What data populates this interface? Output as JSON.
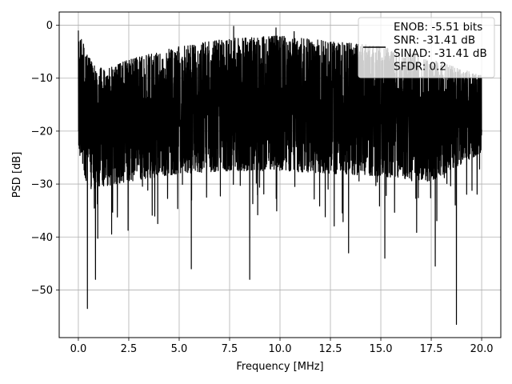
{
  "chart_data": {
    "type": "line",
    "title": "",
    "xlabel": "Frequency [MHz]",
    "ylabel": "PSD [dB]",
    "xlim": [
      -0.95,
      20.95
    ],
    "ylim": [
      -59,
      2.5
    ],
    "xticks": [
      0.0,
      2.5,
      5.0,
      7.5,
      10.0,
      12.5,
      15.0,
      17.5,
      20.0
    ],
    "xtick_labels": [
      "0.0",
      "2.5",
      "5.0",
      "7.5",
      "10.0",
      "12.5",
      "15.0",
      "17.5",
      "20.0"
    ],
    "yticks": [
      0,
      -10,
      -20,
      -30,
      -40,
      -50
    ],
    "ytick_labels": [
      "0",
      "−10",
      "−20",
      "−30",
      "−40",
      "−50"
    ],
    "grid": true,
    "legend_position": "upper-right",
    "series": [
      {
        "name": "ENOB: -5.51 bits\nSNR: -31.41 dB\nSINAD: -31.41 dB\nSFDR: 0.2",
        "color": "#000000",
        "x_range": [
          0.0,
          20.0
        ],
        "points": 4096,
        "envelope_top": [
          [
            0.0,
            -1.0
          ],
          [
            0.5,
            -6.0
          ],
          [
            1.25,
            -8.5
          ],
          [
            2.5,
            -6.5
          ],
          [
            5.0,
            -4.0
          ],
          [
            7.5,
            -2.5
          ],
          [
            10.0,
            -2.0
          ],
          [
            12.5,
            -3.0
          ],
          [
            15.0,
            -4.0
          ],
          [
            17.5,
            -6.5
          ],
          [
            20.0,
            -9.5
          ]
        ],
        "envelope_bottom": [
          [
            0.0,
            -24.0
          ],
          [
            0.5,
            -31.0
          ],
          [
            2.5,
            -29.5
          ],
          [
            5.0,
            -28.0
          ],
          [
            7.5,
            -27.5
          ],
          [
            10.0,
            -27.5
          ],
          [
            12.5,
            -28.0
          ],
          [
            15.0,
            -28.5
          ],
          [
            17.5,
            -29.5
          ],
          [
            20.0,
            -24.0
          ]
        ],
        "notable_minima": [
          [
            0.45,
            -53.5
          ],
          [
            0.85,
            -48.0
          ],
          [
            5.6,
            -46.0
          ],
          [
            8.5,
            -48.0
          ],
          [
            13.4,
            -43.0
          ],
          [
            15.2,
            -44.0
          ],
          [
            17.7,
            -45.5
          ],
          [
            18.75,
            -56.5
          ]
        ],
        "notable_maxima": [
          [
            0.0,
            -1.0
          ],
          [
            7.7,
            -0.2
          ],
          [
            9.8,
            -0.5
          ],
          [
            10.7,
            -1.2
          ]
        ]
      }
    ],
    "legend": {
      "lines": [
        "ENOB: -5.51 bits",
        "SNR: -31.41 dB",
        "SINAD: -31.41 dB",
        "SFDR: 0.2"
      ]
    }
  }
}
